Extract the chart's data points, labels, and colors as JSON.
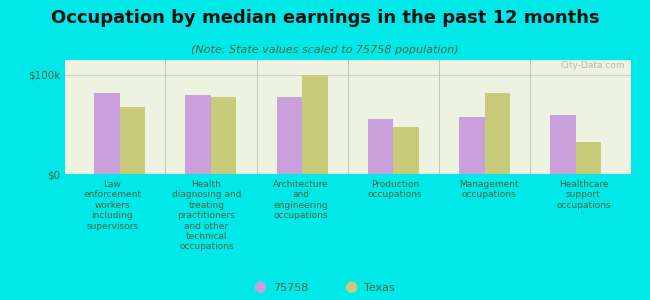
{
  "title": "Occupation by median earnings in the past 12 months",
  "subtitle": "(Note: State values scaled to 75758 population)",
  "categories": [
    "Law\nenforcement\nworkers\nincluding\nsupervisors",
    "Health\ndiagnosing and\ntreating\npractitioners\nand other\ntechnical\noccupations",
    "Architecture\nand\nengineering\noccupations",
    "Production\noccupations",
    "Management\noccupations",
    "Healthcare\nsupport\noccupations"
  ],
  "values_75758": [
    82000,
    80000,
    78000,
    55000,
    57000,
    60000
  ],
  "values_texas": [
    68000,
    78000,
    100000,
    47000,
    82000,
    32000
  ],
  "color_75758": "#c9a0dc",
  "color_texas": "#c8cc7a",
  "yticks": [
    0,
    100000
  ],
  "ytick_labels": [
    "$0",
    "$100k"
  ],
  "ylim": [
    0,
    115000
  ],
  "background_color": "#00e8e8",
  "plot_bg": "#eef2e0",
  "watermark": "City-Data.com",
  "legend_75758": "75758",
  "legend_texas": "Texas",
  "title_fontsize": 13,
  "subtitle_fontsize": 8,
  "bar_width": 0.28
}
